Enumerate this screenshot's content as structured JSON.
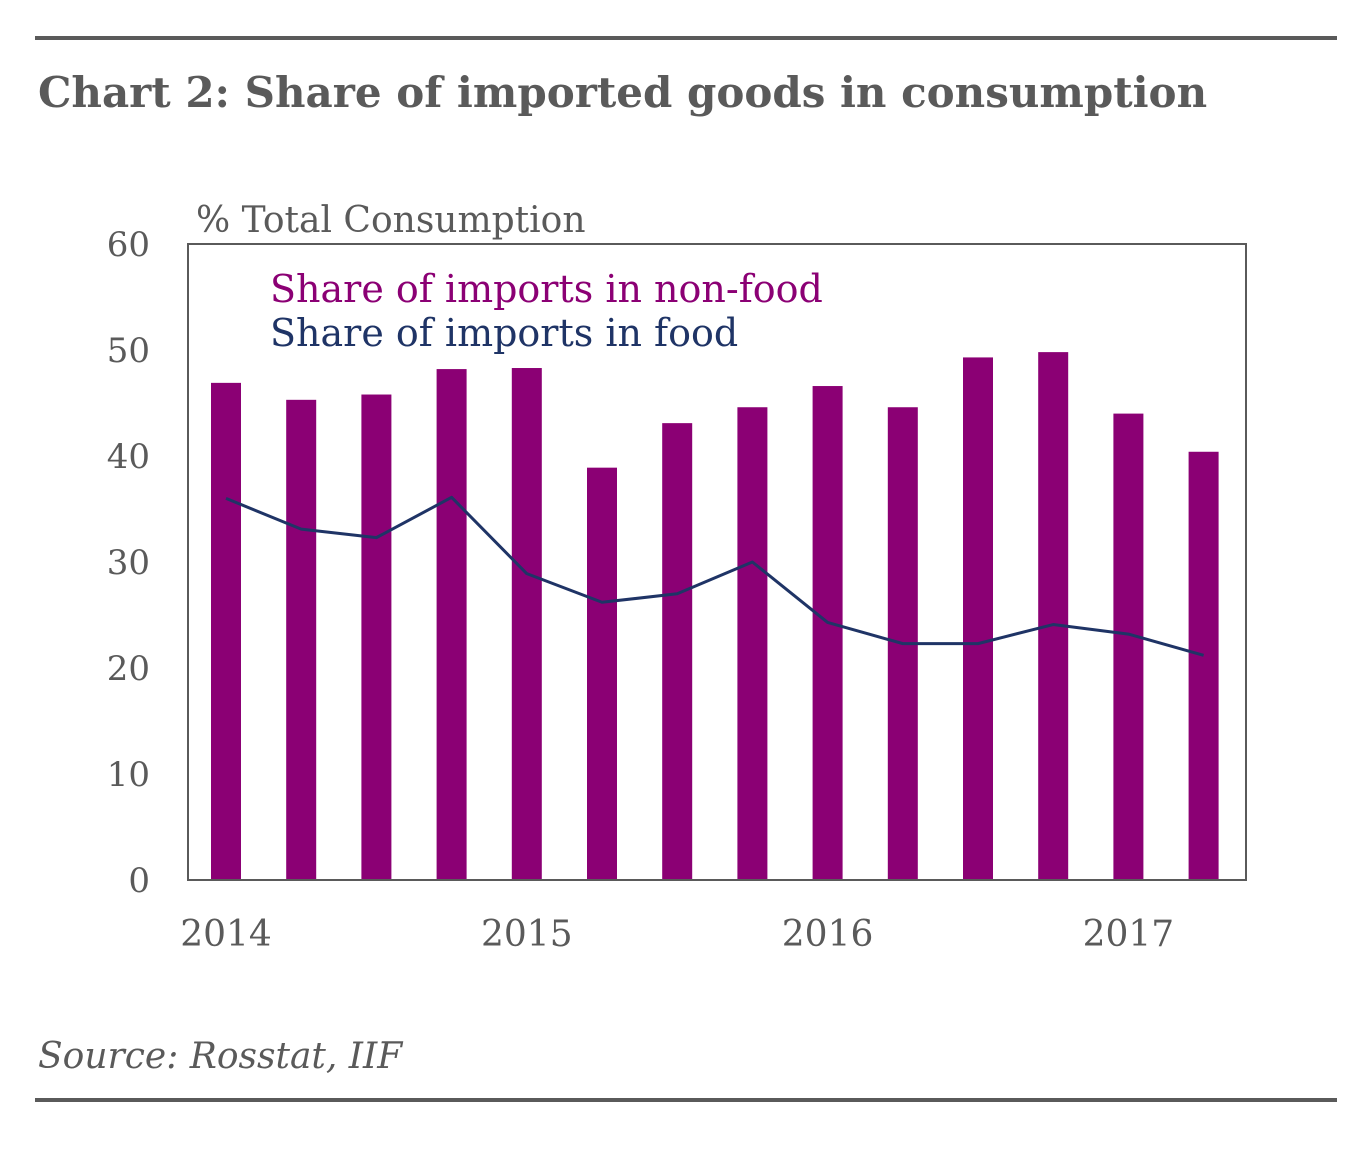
{
  "title": "Chart 2: Share of imported goods in consumption",
  "source": "Source: Rosstat, IIF",
  "colors": {
    "nonfood": "#8B0074",
    "food": "#1F3466",
    "axis": "#5a5a5a",
    "text": "#5a5a5a"
  },
  "chart_data": {
    "type": "bar+line",
    "ylabel": "% Total Consumption",
    "ylim": [
      0,
      60
    ],
    "yticks": [
      0,
      10,
      20,
      30,
      40,
      50,
      60
    ],
    "x_labels": [
      "2014",
      "2015",
      "2016",
      "2017"
    ],
    "x_label_positions": [
      0,
      4,
      8,
      12
    ],
    "categories": [
      "2014 Q1",
      "2014 Q2",
      "2014 Q3",
      "2014 Q4",
      "2015 Q1",
      "2015 Q2",
      "2015 Q3",
      "2015 Q4",
      "2016 Q1",
      "2016 Q2",
      "2016 Q3",
      "2016 Q4",
      "2017 Q1",
      "2017 Q2"
    ],
    "series": [
      {
        "name": "Share of imports in non-food",
        "type": "bar",
        "values": [
          46.9,
          45.3,
          45.8,
          48.2,
          48.3,
          38.9,
          43.1,
          44.6,
          46.6,
          44.6,
          49.3,
          49.8,
          44.0,
          40.4
        ]
      },
      {
        "name": "Share of imports in food",
        "type": "line",
        "values": [
          36.0,
          33.1,
          32.3,
          36.1,
          28.9,
          26.2,
          27.0,
          30.0,
          24.3,
          22.3,
          22.3,
          24.1,
          23.2,
          21.2
        ]
      }
    ],
    "grid": false,
    "legend": "top-left"
  }
}
